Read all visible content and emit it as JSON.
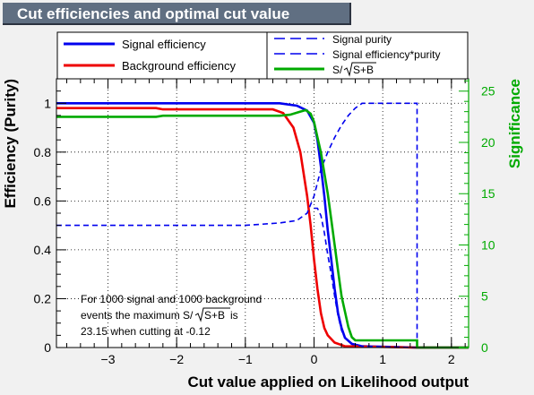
{
  "title": "Cut efficiencies and optimal cut value",
  "chart_data": {
    "type": "line",
    "xlabel": "Cut value applied on Likelihood output",
    "ylabel": "Efficiency (Purity)",
    "y2label": "Significance",
    "xlim": [
      -3.75,
      2.25
    ],
    "ylim": [
      0,
      1.1
    ],
    "y2lim": [
      0,
      26.2
    ],
    "x_ticks": [
      -3,
      -2,
      -1,
      0,
      1,
      2
    ],
    "y_ticks": [
      0,
      0.2,
      0.4,
      0.6,
      0.8,
      1
    ],
    "y2_ticks": [
      0,
      5,
      10,
      15,
      20,
      25
    ],
    "grid": true,
    "legend_left": [
      "Signal efficiency",
      "Background efficiency"
    ],
    "legend_right": [
      "Signal purity",
      "Signal efficiency*purity",
      "S/√S+B"
    ],
    "legend_right_sqrt_arg": "S+B",
    "annotation": {
      "line1": "For 1000 signal and 1000 background",
      "line2_prefix": "events the maximum S/",
      "line2_sqrt": "S+B",
      "line2_suffix": " is",
      "line3": "23.15 when cutting at -0.12"
    },
    "series": [
      {
        "name": "Signal efficiency",
        "axis": "left",
        "color": "#0000ee",
        "style": "solid",
        "points": [
          [
            -3.75,
            1.0
          ],
          [
            -0.5,
            1.0
          ],
          [
            -0.25,
            0.99
          ],
          [
            -0.1,
            0.97
          ],
          [
            0.0,
            0.92
          ],
          [
            0.05,
            0.85
          ],
          [
            0.1,
            0.74
          ],
          [
            0.15,
            0.62
          ],
          [
            0.2,
            0.48
          ],
          [
            0.25,
            0.36
          ],
          [
            0.3,
            0.24
          ],
          [
            0.35,
            0.14
          ],
          [
            0.4,
            0.08
          ],
          [
            0.45,
            0.04
          ],
          [
            0.55,
            0.015
          ],
          [
            0.7,
            0.005
          ],
          [
            1.5,
            0.0
          ],
          [
            2.25,
            0.0
          ]
        ]
      },
      {
        "name": "Background efficiency",
        "axis": "left",
        "color": "#ee0000",
        "style": "solid",
        "points": [
          [
            -3.75,
            0.98
          ],
          [
            -2.3,
            0.98
          ],
          [
            -2.2,
            0.975
          ],
          [
            -0.6,
            0.975
          ],
          [
            -0.45,
            0.96
          ],
          [
            -0.3,
            0.9
          ],
          [
            -0.2,
            0.8
          ],
          [
            -0.1,
            0.62
          ],
          [
            -0.05,
            0.5
          ],
          [
            0.0,
            0.36
          ],
          [
            0.05,
            0.24
          ],
          [
            0.1,
            0.14
          ],
          [
            0.15,
            0.08
          ],
          [
            0.2,
            0.05
          ],
          [
            0.3,
            0.02
          ],
          [
            0.45,
            0.005
          ],
          [
            1.5,
            0.0
          ],
          [
            2.25,
            0.0
          ]
        ]
      },
      {
        "name": "Signal purity",
        "axis": "left",
        "color": "#0000ee",
        "style": "dashed",
        "points": [
          [
            -3.75,
            0.5
          ],
          [
            -1.0,
            0.5
          ],
          [
            -0.5,
            0.51
          ],
          [
            -0.25,
            0.52
          ],
          [
            -0.1,
            0.55
          ],
          [
            0.0,
            0.62
          ],
          [
            0.1,
            0.73
          ],
          [
            0.2,
            0.8
          ],
          [
            0.3,
            0.86
          ],
          [
            0.4,
            0.91
          ],
          [
            0.5,
            0.95
          ],
          [
            0.6,
            0.98
          ],
          [
            0.7,
            1.0
          ],
          [
            1.5,
            1.0
          ],
          [
            1.5,
            0.0
          ]
        ]
      },
      {
        "name": "Signal efficiency*purity",
        "axis": "left",
        "color": "#0000ee",
        "style": "dashed",
        "points": [
          [
            0.0,
            0.57
          ],
          [
            0.05,
            0.57
          ],
          [
            0.1,
            0.54
          ],
          [
            0.15,
            0.47
          ],
          [
            0.2,
            0.38
          ],
          [
            0.25,
            0.3
          ],
          [
            0.3,
            0.21
          ],
          [
            0.35,
            0.13
          ],
          [
            0.4,
            0.07
          ],
          [
            0.45,
            0.04
          ],
          [
            0.55,
            0.015
          ],
          [
            0.7,
            0.005
          ],
          [
            1.5,
            0.0
          ]
        ]
      },
      {
        "name": "S/√S+B",
        "axis": "right",
        "color": "#00aa00",
        "style": "solid",
        "points": [
          [
            -3.75,
            22.5
          ],
          [
            -2.3,
            22.5
          ],
          [
            -2.2,
            22.6
          ],
          [
            -0.5,
            22.6
          ],
          [
            -0.35,
            22.7
          ],
          [
            -0.2,
            23.0
          ],
          [
            -0.12,
            23.15
          ],
          [
            -0.05,
            22.8
          ],
          [
            0.0,
            22.0
          ],
          [
            0.05,
            20.5
          ],
          [
            0.1,
            19.0
          ],
          [
            0.15,
            17.0
          ],
          [
            0.2,
            15.0
          ],
          [
            0.25,
            12.5
          ],
          [
            0.3,
            10.0
          ],
          [
            0.35,
            7.5
          ],
          [
            0.4,
            5.0
          ],
          [
            0.45,
            3.5
          ],
          [
            0.5,
            2.0
          ],
          [
            0.55,
            1.0
          ],
          [
            0.6,
            0.7
          ],
          [
            1.5,
            0.7
          ],
          [
            1.5,
            0.0
          ],
          [
            2.25,
            0.0
          ]
        ]
      }
    ]
  }
}
